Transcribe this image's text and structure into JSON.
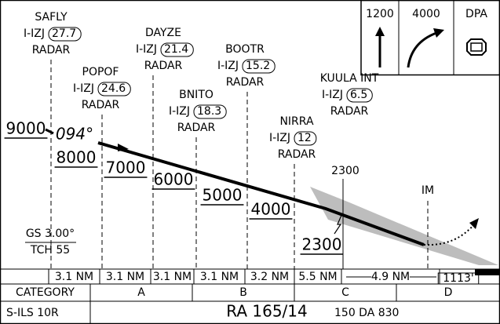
{
  "fixes": [
    {
      "name": "SAFLY",
      "ident": "I-IZJ",
      "dme": "27.7",
      "note": "RADAR"
    },
    {
      "name": "POPOF",
      "ident": "I-IZJ",
      "dme": "24.6",
      "note": "RADAR"
    },
    {
      "name": "DAYZE",
      "ident": "I-IZJ",
      "dme": "21.4",
      "note": "RADAR"
    },
    {
      "name": "BNITO",
      "ident": "I-IZJ",
      "dme": "18.3",
      "note": "RADAR"
    },
    {
      "name": "BOOTR",
      "ident": "I-IZJ",
      "dme": "15.2",
      "note": "RADAR"
    },
    {
      "name": "NIRRA",
      "ident": "I-IZJ",
      "dme": "12",
      "note": "RADAR"
    },
    {
      "name": "KUULA INT",
      "ident": "I-IZJ",
      "dme": "6.5",
      "note": "RADAR"
    }
  ],
  "altitudes": [
    "9000",
    "8000",
    "7000",
    "6000",
    "5000",
    "4000",
    "2300"
  ],
  "course": "094°",
  "fix_altitude": "2300",
  "middle_marker": "IM",
  "glideslope": "GS 3.00°",
  "tch": "TCH 55",
  "missed_approach": [
    "1200",
    "4000",
    "DPA"
  ],
  "distances": [
    "3.1 NM",
    "3.1 NM",
    "3.1 NM",
    "3.1 NM",
    "3.2 NM",
    "5.5 NM",
    "4.9 NM"
  ],
  "tdze": "1113'",
  "minimums": {
    "header": [
      "CATEGORY",
      "A",
      "B",
      "C",
      "D"
    ],
    "approach": "S-ILS 10R",
    "ra": "RA 165/14",
    "da": "150 DA 830"
  }
}
